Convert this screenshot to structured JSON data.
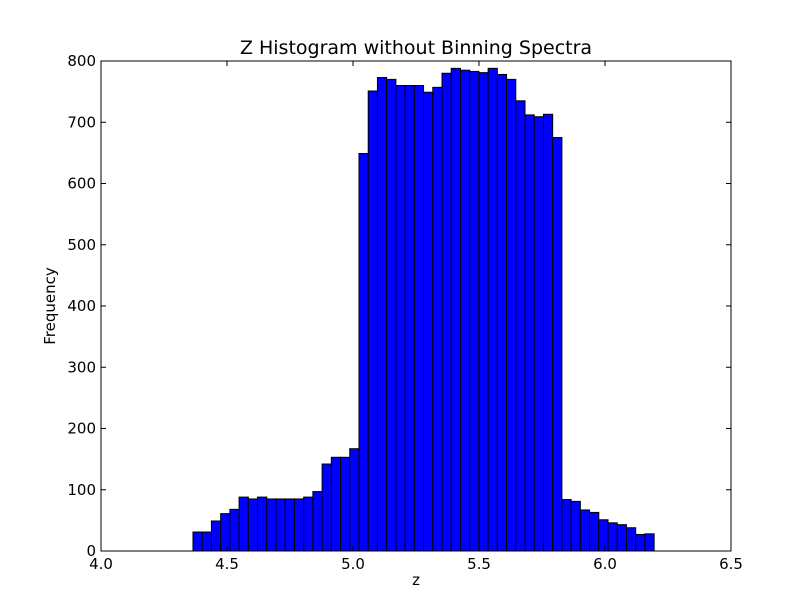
{
  "chart_data": {
    "type": "bar",
    "title": "Z Histogram without Binning Spectra",
    "xlabel": "z",
    "ylabel": "Frequency",
    "xlim": [
      4.0,
      6.5
    ],
    "ylim": [
      0,
      800
    ],
    "xticks": [
      "4.0",
      "4.5",
      "5.0",
      "5.5",
      "6.0",
      "6.5"
    ],
    "yticks": [
      "0",
      "100",
      "200",
      "300",
      "400",
      "500",
      "600",
      "700",
      "800"
    ],
    "grid": false,
    "bar_color": "#0000ff",
    "edge_color": "#000000",
    "bin_start": 4.365,
    "bin_width": 0.0366,
    "values": [
      31,
      31,
      49,
      61,
      68,
      88,
      85,
      88,
      85,
      85,
      85,
      85,
      88,
      97,
      142,
      153,
      153,
      167,
      649,
      751,
      773,
      770,
      760,
      760,
      760,
      749,
      757,
      780,
      788,
      785,
      783,
      781,
      788,
      778,
      770,
      735,
      712,
      709,
      713,
      675,
      84,
      81,
      67,
      63,
      51,
      46,
      43,
      38,
      27,
      28
    ]
  }
}
